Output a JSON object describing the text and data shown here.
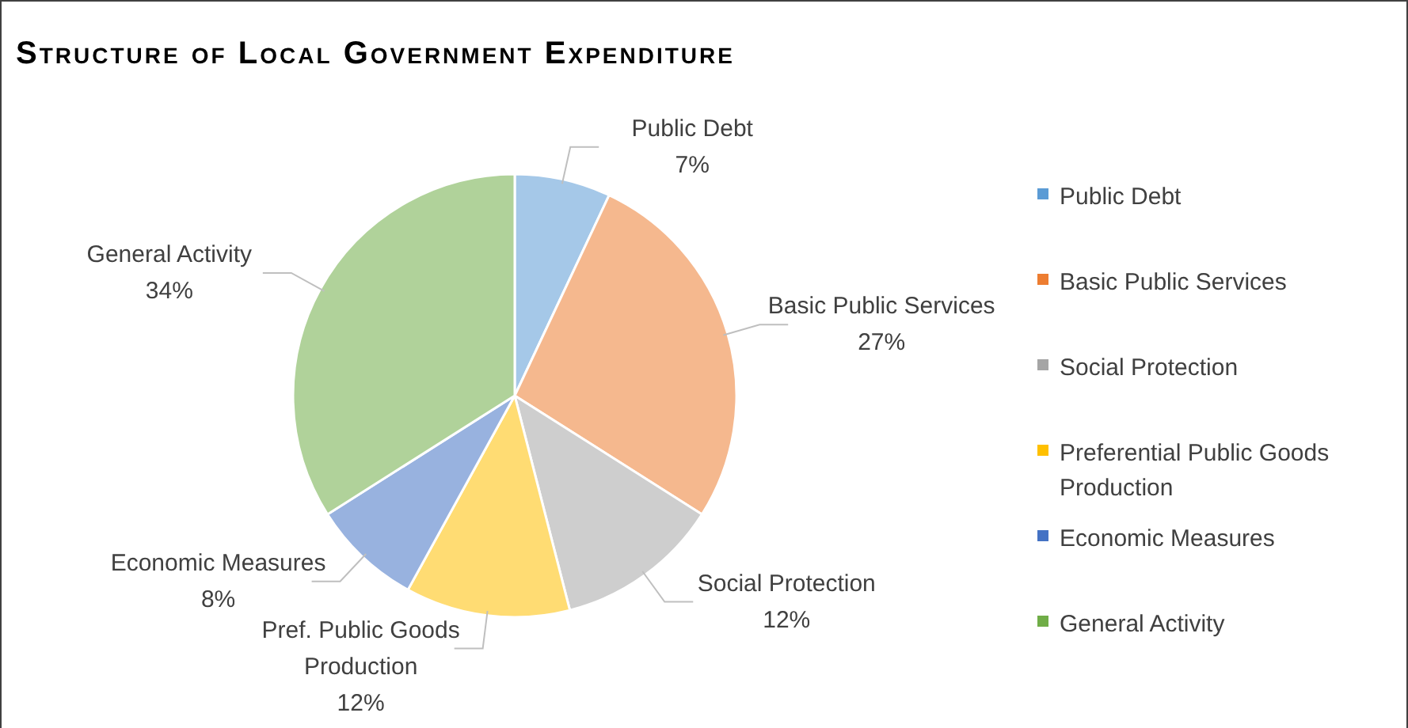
{
  "chart_data": {
    "type": "pie",
    "title": "Structure of Local Government Expenditure",
    "categories": [
      "Public Debt",
      "Basic Public Services",
      "Social Protection",
      "Preferential Public Goods Production",
      "Economic Measures",
      "General Activity"
    ],
    "values": [
      7,
      27,
      12,
      12,
      8,
      34
    ],
    "colors": [
      "#5b9bd5",
      "#ed7d31",
      "#a5a5a5",
      "#ffc000",
      "#4472c4",
      "#70ad47"
    ],
    "value_labels": [
      "Public Debt\n7%",
      "Basic Public Services\n27%",
      "Social Protection\n12%",
      "Pref. Public Goods\nProduction\n12%",
      "Economic Measures\n8%",
      "General Activity\n34%"
    ],
    "legend": "right"
  }
}
